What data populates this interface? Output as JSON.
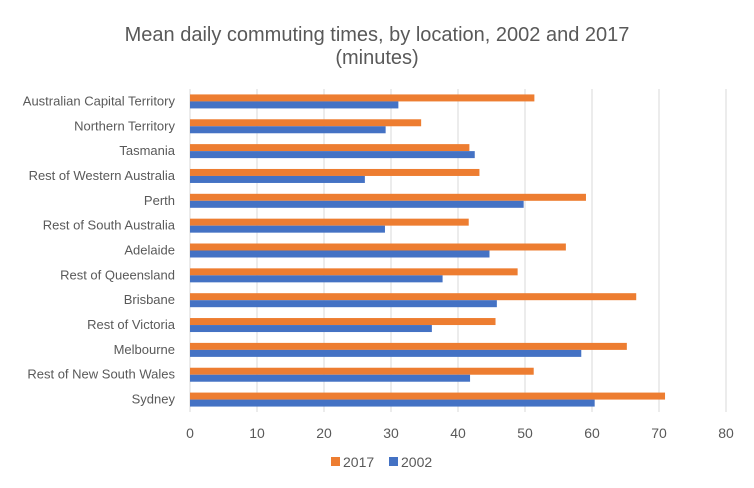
{
  "chart_data": {
    "type": "bar",
    "orientation": "horizontal",
    "title_line1": "Mean daily commuting times, by location, 2002 and 2017",
    "title_line2": "(minutes)",
    "categories": [
      "Australian Capital Territory",
      "Northern Territory",
      "Tasmania",
      "Rest of Western Australia",
      "Perth",
      "Rest of South Australia",
      "Adelaide",
      "Rest of Queensland",
      "Brisbane",
      "Rest of Victoria",
      "Melbourne",
      "Rest of New South Wales",
      "Sydney"
    ],
    "series": [
      {
        "name": "2017",
        "color": "#ED7D31",
        "values": [
          51.4,
          34.5,
          41.7,
          43.2,
          59.1,
          41.6,
          56.1,
          48.9,
          66.6,
          45.6,
          65.2,
          51.3,
          70.9
        ]
      },
      {
        "name": "2002",
        "color": "#4472C4",
        "values": [
          31.1,
          29.2,
          42.5,
          26.1,
          49.8,
          29.1,
          44.7,
          37.7,
          45.8,
          36.1,
          58.4,
          41.8,
          60.4
        ]
      }
    ],
    "xlim": [
      0,
      80
    ],
    "xticks": [
      "0",
      "10",
      "20",
      "30",
      "40",
      "50",
      "60",
      "70",
      "80"
    ],
    "grid": true,
    "legend_position": "bottom"
  }
}
